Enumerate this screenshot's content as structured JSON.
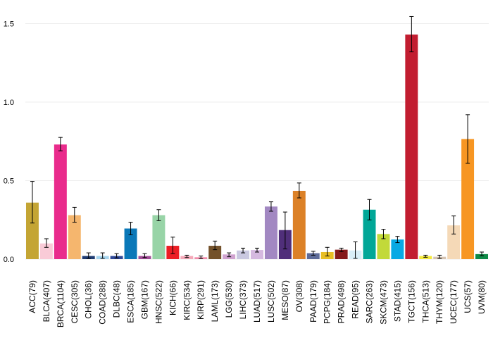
{
  "chart_data": {
    "type": "bar",
    "title": "",
    "xlabel": "",
    "ylabel": "",
    "ylim": [
      0,
      1.55
    ],
    "yticks": [
      0.0,
      0.5,
      1.0,
      1.5
    ],
    "ytick_labels": [
      "0.0",
      "0.5",
      "1.0",
      "1.5"
    ],
    "grid": true,
    "legend": "none",
    "categories": [
      "ACC(79)",
      "BLCA(407)",
      "BRCA(1104)",
      "CESC(305)",
      "CHOL(36)",
      "COAD(288)",
      "DLBC(48)",
      "ESCA(185)",
      "GBM(167)",
      "HNSC(522)",
      "KICH(66)",
      "KIRC(534)",
      "KIRP(291)",
      "LAML(173)",
      "LGG(530)",
      "LIHC(373)",
      "LUAD(517)",
      "LUSC(502)",
      "MESO(87)",
      "OV(308)",
      "PAAD(179)",
      "PCPG(184)",
      "PRAD(498)",
      "READ(95)",
      "SARC(263)",
      "SKCM(473)",
      "STAD(415)",
      "TGCT(156)",
      "THCA(513)",
      "THYM(120)",
      "UCEC(177)",
      "UCS(57)",
      "UVM(80)"
    ],
    "values": [
      0.36,
      0.1,
      0.73,
      0.28,
      0.02,
      0.02,
      0.02,
      0.195,
      0.02,
      0.28,
      0.085,
      0.02,
      0.012,
      0.085,
      0.03,
      0.055,
      0.058,
      0.335,
      0.185,
      0.435,
      0.038,
      0.045,
      0.06,
      0.055,
      0.315,
      0.16,
      0.125,
      1.43,
      0.02,
      0.015,
      0.215,
      0.765,
      0.032
    ],
    "err_low": [
      0.23,
      0.075,
      0.69,
      0.235,
      0.005,
      0.005,
      0.008,
      0.155,
      0.01,
      0.245,
      0.035,
      0.01,
      0.004,
      0.06,
      0.015,
      0.04,
      0.045,
      0.305,
      0.065,
      0.39,
      0.025,
      0.02,
      0.048,
      0.005,
      0.25,
      0.13,
      0.105,
      1.32,
      0.012,
      0.005,
      0.16,
      0.61,
      0.022
    ],
    "err_high": [
      0.495,
      0.13,
      0.775,
      0.33,
      0.04,
      0.04,
      0.035,
      0.235,
      0.035,
      0.315,
      0.14,
      0.025,
      0.02,
      0.115,
      0.04,
      0.07,
      0.07,
      0.365,
      0.3,
      0.485,
      0.05,
      0.075,
      0.07,
      0.11,
      0.38,
      0.19,
      0.145,
      1.545,
      0.025,
      0.025,
      0.275,
      0.92,
      0.045
    ],
    "colors": [
      "#c4a534",
      "#f9cbd7",
      "#e92b8c",
      "#f5b66e",
      "#1f3c73",
      "#a6d4ed",
      "#2e4898",
      "#0a78b8",
      "#a04c96",
      "#98d4a7",
      "#ec1d24",
      "#f5a8b8",
      "#f28cab",
      "#73512a",
      "#cfa2cf",
      "#c9c8e0",
      "#d5b9df",
      "#a288c2",
      "#502f7a",
      "#dc8127",
      "#5d6b99",
      "#e8be23",
      "#85191a",
      "#d9eef8",
      "#01a797",
      "#c2d93a",
      "#08a9e4",
      "#c21d30",
      "#f4e93b",
      "#d5c3b1",
      "#f5d9b7",
      "#f79623",
      "#0e8947"
    ]
  }
}
